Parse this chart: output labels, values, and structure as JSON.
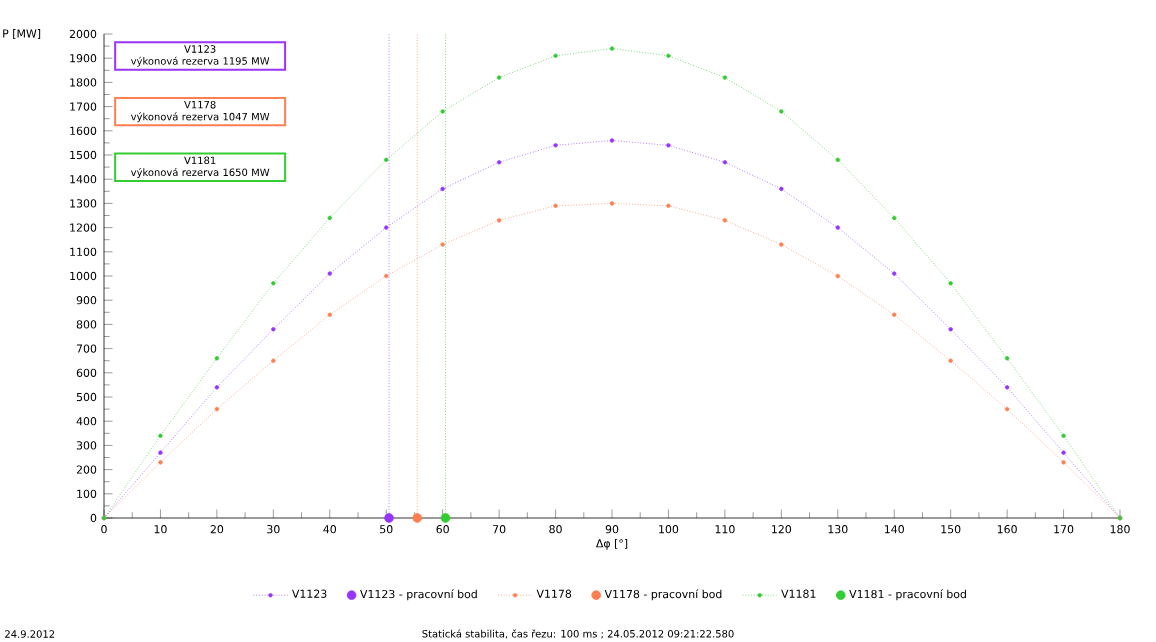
{
  "chart_data": {
    "type": "line",
    "xlabel": "Δφ [°]",
    "ylabel": "P [MW]",
    "x": [
      0,
      10,
      20,
      30,
      40,
      50,
      60,
      70,
      80,
      90,
      100,
      110,
      120,
      130,
      140,
      150,
      160,
      170,
      180
    ],
    "series": [
      {
        "name": "V1123",
        "color": "#9933ff",
        "values": [
          0,
          270,
          540,
          780,
          1010,
          1200,
          1360,
          1470,
          1540,
          1560,
          1540,
          1470,
          1360,
          1200,
          1010,
          780,
          540,
          270,
          0
        ]
      },
      {
        "name": "V1123 - pracovní bod",
        "type": "scatter",
        "color": "#9933ff",
        "x": [
          50.5
        ],
        "values": [
          0
        ]
      },
      {
        "name": "V1178",
        "color": "#ff7f50",
        "values": [
          0,
          230,
          450,
          650,
          840,
          1000,
          1130,
          1230,
          1290,
          1300,
          1290,
          1230,
          1130,
          1000,
          840,
          650,
          450,
          230,
          0
        ]
      },
      {
        "name": "V1178 - pracovní bod",
        "type": "scatter",
        "color": "#ff7f50",
        "x": [
          55.5
        ],
        "values": [
          0
        ]
      },
      {
        "name": "V1181",
        "color": "#33cc33",
        "values": [
          0,
          340,
          660,
          970,
          1240,
          1480,
          1680,
          1820,
          1910,
          1940,
          1910,
          1820,
          1680,
          1480,
          1240,
          970,
          660,
          340,
          0
        ]
      },
      {
        "name": "V1181 - pracovní bod",
        "type": "scatter",
        "color": "#33cc33",
        "x": [
          60.5
        ],
        "values": [
          0
        ]
      }
    ],
    "xlim": [
      0,
      180
    ],
    "ylim": [
      0,
      2000
    ],
    "xticks": [
      0,
      10,
      20,
      30,
      40,
      50,
      60,
      70,
      80,
      90,
      100,
      110,
      120,
      130,
      140,
      150,
      160,
      170,
      180
    ],
    "yticks": [
      0,
      100,
      200,
      300,
      400,
      500,
      600,
      700,
      800,
      900,
      1000,
      1100,
      1200,
      1300,
      1400,
      1500,
      1600,
      1700,
      1800,
      1900,
      2000
    ],
    "ref_lines": [
      {
        "axis": "x",
        "value": 50.5,
        "color": "#9933ff",
        "line_style": "dotted"
      },
      {
        "axis": "x",
        "value": 55.5,
        "color": "#ff7f50",
        "line_style": "dotted"
      },
      {
        "axis": "x",
        "value": 60.5,
        "color": "#33cc33",
        "line_style": "dotted"
      }
    ],
    "annotations": [
      "V1123",
      "výkonová rezerva 1195 MW",
      "V1178",
      "výkonová rezerva 1047 MW",
      "V1181",
      "výkonová rezerva 1650 MW",
      "24.9.2012",
      "Statická stabilita,  čas řezu: 100 ms ; 24.05.2012 09:21:22.580"
    ],
    "legend": "bottom",
    "marker": "circle",
    "line_style": "dotted",
    "grid": false
  }
}
